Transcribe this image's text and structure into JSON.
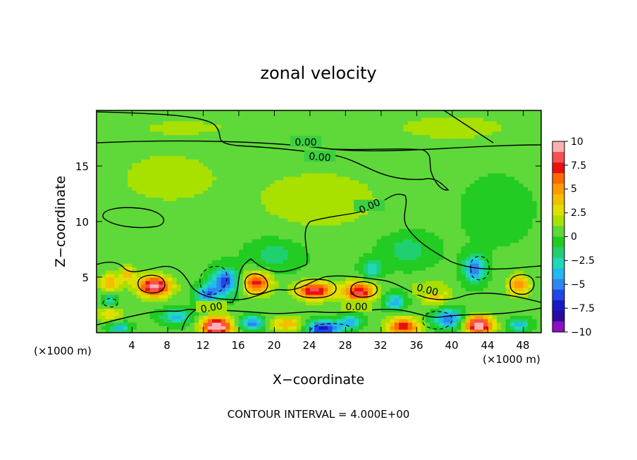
{
  "chart_data": {
    "type": "heatmap",
    "title": "zonal velocity",
    "xlabel": "X−coordinate",
    "ylabel": "Z−coordinate",
    "x_unit": "(×1000 m)",
    "x_ticks": [
      "4",
      "8",
      "12",
      "16",
      "20",
      "24",
      "28",
      "32",
      "36",
      "40",
      "44",
      "48"
    ],
    "y_ticks": [
      "5",
      "10",
      "15"
    ],
    "xlim": [
      0,
      50
    ],
    "ylim": [
      0,
      20
    ],
    "colorbar": {
      "labels": [
        "10",
        "7.5",
        "5",
        "2.5",
        "0",
        "−2.5",
        "−5",
        "−7.5",
        "−10"
      ],
      "range": [
        -10,
        10
      ],
      "colors": [
        "#ffb0b0",
        "#f55050",
        "#e81010",
        "#ff6a00",
        "#ff9a00",
        "#f2c000",
        "#e0e000",
        "#a8e000",
        "#5fd83a",
        "#22cc22",
        "#20d070",
        "#20d8b8",
        "#22b8f0",
        "#2e86f0",
        "#1f48e8",
        "#1818c8",
        "#2a0aa0",
        "#8c10c0"
      ]
    },
    "contour_interval": "CONTOUR INTERVAL = 4.000E+00",
    "contour_labels": [
      "0.00",
      "0.00",
      "0.00",
      "0.00",
      "0.00"
    ],
    "field": {
      "background": 0.3,
      "features": [
        {
          "x": 6.5,
          "y": 4.2,
          "value": 9.5,
          "sx": 1.8,
          "sy": 0.9
        },
        {
          "x": 13.5,
          "y": 0.6,
          "value": 11.0,
          "sx": 1.6,
          "sy": 0.8
        },
        {
          "x": 18.0,
          "y": 4.5,
          "value": 7.0,
          "sx": 1.6,
          "sy": 1.0
        },
        {
          "x": 24.5,
          "y": 3.8,
          "value": 8.0,
          "sx": 2.0,
          "sy": 0.8
        },
        {
          "x": 29.5,
          "y": 3.7,
          "value": 7.8,
          "sx": 1.8,
          "sy": 0.9
        },
        {
          "x": 34.5,
          "y": 0.6,
          "value": 7.0,
          "sx": 1.8,
          "sy": 0.8
        },
        {
          "x": 43.0,
          "y": 0.7,
          "value": 10.0,
          "sx": 1.5,
          "sy": 0.8
        },
        {
          "x": 47.5,
          "y": 4.3,
          "value": 5.0,
          "sx": 1.3,
          "sy": 0.9
        },
        {
          "x": 1.5,
          "y": 4.5,
          "value": 4.0,
          "sx": 1.2,
          "sy": 0.8
        },
        {
          "x": 3.5,
          "y": 5.3,
          "value": 4.0,
          "sx": 0.8,
          "sy": 0.7
        },
        {
          "x": 1.5,
          "y": 1.8,
          "value": 3.0,
          "sx": 1.5,
          "sy": 0.8
        },
        {
          "x": 21.5,
          "y": 0.8,
          "value": 4.0,
          "sx": 1.8,
          "sy": 0.7
        },
        {
          "x": 38.0,
          "y": 3.5,
          "value": 4.0,
          "sx": 1.5,
          "sy": 1.0
        },
        {
          "x": 14.5,
          "y": 4.6,
          "value": -6.5,
          "sx": 1.5,
          "sy": 1.2
        },
        {
          "x": 12.5,
          "y": 3.5,
          "value": -5.5,
          "sx": 1.3,
          "sy": 0.8
        },
        {
          "x": 25.5,
          "y": 0.4,
          "value": -8.0,
          "sx": 1.8,
          "sy": 0.7
        },
        {
          "x": 17.5,
          "y": 0.9,
          "value": -5.5,
          "sx": 1.3,
          "sy": 0.6
        },
        {
          "x": 28.5,
          "y": 1.0,
          "value": -4.5,
          "sx": 1.2,
          "sy": 0.6
        },
        {
          "x": 39.5,
          "y": 1.3,
          "value": -6.0,
          "sx": 1.6,
          "sy": 0.9
        },
        {
          "x": 42.5,
          "y": 5.8,
          "value": -5.5,
          "sx": 1.2,
          "sy": 1.2
        },
        {
          "x": 33.5,
          "y": 2.8,
          "value": -4.0,
          "sx": 1.2,
          "sy": 0.8
        },
        {
          "x": 31.0,
          "y": 5.8,
          "value": -3.5,
          "sx": 1.2,
          "sy": 0.8
        },
        {
          "x": 9.0,
          "y": 1.5,
          "value": -4.0,
          "sx": 1.8,
          "sy": 0.7
        },
        {
          "x": 1.5,
          "y": 2.8,
          "value": -4.0,
          "sx": 0.8,
          "sy": 0.6
        },
        {
          "x": 47.5,
          "y": 0.7,
          "value": -4.0,
          "sx": 1.2,
          "sy": 0.6
        },
        {
          "x": 2.5,
          "y": 0.5,
          "value": -4.0,
          "sx": 1.2,
          "sy": 0.5
        },
        {
          "x": 20.0,
          "y": 7.0,
          "value": -2.0,
          "sx": 3.0,
          "sy": 1.5
        },
        {
          "x": 35.0,
          "y": 7.5,
          "value": -2.0,
          "sx": 3.0,
          "sy": 1.5
        },
        {
          "x": 25.0,
          "y": 12.0,
          "value": 1.5,
          "sx": 8.0,
          "sy": 3.0
        },
        {
          "x": 8.0,
          "y": 14.0,
          "value": 1.5,
          "sx": 6.0,
          "sy": 2.5
        },
        {
          "x": 40.0,
          "y": 18.5,
          "value": 1.5,
          "sx": 7.0,
          "sy": 1.2
        },
        {
          "x": 10.0,
          "y": 18.5,
          "value": 1.0,
          "sx": 8.0,
          "sy": 1.0
        },
        {
          "x": 45.0,
          "y": 11.0,
          "value": -1.0,
          "sx": 4.0,
          "sy": 3.0
        }
      ]
    }
  }
}
